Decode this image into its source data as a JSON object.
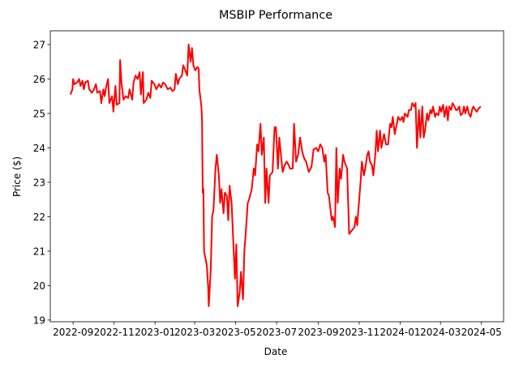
{
  "chart_data": {
    "type": "line",
    "title": "MSBIP Performance",
    "x_label": "Date",
    "y_label": "Price ($)",
    "color": "#ff0000",
    "xlim": [
      19202,
      19877
    ],
    "ylim": [
      18.95,
      27.4
    ],
    "xticks": [
      {
        "value": 19236,
        "label": "2022-09"
      },
      {
        "value": 19297,
        "label": "2022-11"
      },
      {
        "value": 19358,
        "label": "2023-01"
      },
      {
        "value": 19417,
        "label": "2023-03"
      },
      {
        "value": 19478,
        "label": "2023-05"
      },
      {
        "value": 19539,
        "label": "2023-07"
      },
      {
        "value": 19601,
        "label": "2023-09"
      },
      {
        "value": 19662,
        "label": "2023-11"
      },
      {
        "value": 19723,
        "label": "2024-01"
      },
      {
        "value": 19783,
        "label": "2024-03"
      },
      {
        "value": 19844,
        "label": "2024-05"
      }
    ],
    "yticks": [
      19,
      20,
      21,
      22,
      23,
      24,
      25,
      26,
      27
    ],
    "x": [
      19232,
      19235,
      19236,
      19238,
      19242,
      19245,
      19247,
      19250,
      19252,
      19254,
      19258,
      19260,
      19264,
      19267,
      19270,
      19272,
      19276,
      19278,
      19281,
      19283,
      19285,
      19288,
      19290,
      19294,
      19296,
      19299,
      19301,
      19305,
      19306,
      19308,
      19311,
      19314,
      19318,
      19320,
      19324,
      19326,
      19329,
      19332,
      19335,
      19337,
      19340,
      19341,
      19345,
      19348,
      19351,
      19353,
      19357,
      19360,
      19364,
      19367,
      19370,
      19373,
      19377,
      19381,
      19384,
      19387,
      19389,
      19392,
      19394,
      19398,
      19400,
      19402,
      19406,
      19408,
      19411,
      19413,
      19415,
      19418,
      19421,
      19423,
      19424,
      19427,
      19428,
      19429,
      19430,
      19431,
      19435,
      19437,
      19438,
      19441,
      19443,
      19445,
      19448,
      19450,
      19453,
      19455,
      19457,
      19460,
      19462,
      19465,
      19467,
      19469,
      19472,
      19474,
      19477,
      19479,
      19481,
      19484,
      19486,
      19489,
      19491,
      19493,
      19496,
      19498,
      19502,
      19505,
      19507,
      19510,
      19512,
      19515,
      19517,
      19520,
      19522,
      19524,
      19527,
      19529,
      19533,
      19536,
      19538,
      19541,
      19543,
      19545,
      19548,
      19551,
      19554,
      19557,
      19559,
      19563,
      19565,
      19568,
      19571,
      19574,
      19577,
      19580,
      19583,
      19587,
      19591,
      19594,
      19598,
      19601,
      19604,
      19607,
      19610,
      19612,
      19615,
      19617,
      19621,
      19623,
      19626,
      19628,
      19630,
      19633,
      19635,
      19638,
      19640,
      19644,
      19647,
      19651,
      19655,
      19657,
      19659,
      19662,
      19664,
      19666,
      19669,
      19671,
      19674,
      19676,
      19678,
      19681,
      19683,
      19686,
      19688,
      19690,
      19693,
      19695,
      19699,
      19702,
      19705,
      19708,
      19710,
      19712,
      19715,
      19717,
      19720,
      19723,
      19726,
      19728,
      19730,
      19734,
      19736,
      19739,
      19741,
      19744,
      19746,
      19748,
      19751,
      19753,
      19756,
      19758,
      19760,
      19763,
      19765,
      19768,
      19770,
      19772,
      19775,
      19777,
      19780,
      19782,
      19784,
      19787,
      19789,
      19792,
      19794,
      19796,
      19799,
      19801,
      19804,
      19806,
      19808,
      19811,
      19813,
      19816,
      19818,
      19820,
      19823,
      19825,
      19828,
      19830,
      19832,
      19835,
      19837,
      19840,
      19843
    ],
    "values": [
      25.55,
      25.7,
      26.0,
      25.85,
      25.9,
      26.0,
      25.8,
      25.95,
      25.7,
      25.9,
      25.95,
      25.7,
      25.6,
      25.7,
      25.85,
      25.6,
      25.65,
      25.3,
      25.7,
      25.5,
      25.75,
      26.0,
      25.3,
      25.5,
      25.05,
      25.8,
      25.25,
      25.3,
      26.55,
      25.9,
      25.4,
      25.5,
      25.45,
      25.7,
      25.4,
      25.9,
      26.1,
      26.0,
      26.2,
      25.55,
      26.2,
      25.3,
      25.4,
      25.6,
      25.45,
      25.95,
      25.85,
      25.7,
      25.85,
      25.75,
      25.9,
      25.85,
      25.7,
      25.75,
      25.65,
      25.7,
      26.15,
      25.85,
      26.0,
      26.1,
      26.4,
      26.3,
      26.1,
      27.0,
      26.5,
      26.9,
      26.4,
      26.25,
      26.35,
      26.3,
      25.7,
      25.2,
      24.8,
      22.7,
      22.8,
      21.0,
      20.6,
      20.0,
      19.4,
      20.5,
      22.0,
      22.2,
      23.4,
      23.8,
      23.2,
      22.4,
      22.8,
      22.1,
      22.7,
      22.6,
      21.9,
      22.9,
      22.4,
      21.5,
      20.2,
      21.2,
      19.4,
      19.8,
      20.4,
      19.6,
      21.0,
      21.5,
      22.4,
      22.5,
      22.8,
      23.4,
      23.2,
      24.1,
      23.9,
      24.7,
      23.8,
      24.3,
      22.4,
      23.4,
      22.4,
      23.2,
      23.3,
      24.6,
      24.6,
      23.4,
      24.3,
      23.9,
      23.3,
      23.5,
      23.6,
      23.5,
      23.4,
      23.4,
      24.7,
      23.6,
      23.8,
      24.3,
      23.9,
      23.7,
      23.6,
      23.3,
      23.45,
      23.95,
      24.0,
      23.9,
      24.1,
      24.0,
      23.6,
      23.8,
      22.7,
      22.6,
      21.9,
      22.0,
      21.7,
      24.0,
      22.4,
      23.4,
      23.1,
      23.8,
      23.6,
      23.4,
      21.5,
      21.6,
      21.7,
      22.0,
      21.75,
      22.5,
      23.0,
      23.6,
      23.2,
      23.4,
      23.8,
      23.9,
      23.6,
      23.5,
      23.2,
      23.8,
      24.5,
      23.9,
      24.5,
      24.0,
      24.4,
      24.1,
      24.1,
      24.7,
      24.6,
      24.9,
      24.4,
      24.6,
      24.9,
      24.8,
      24.9,
      24.75,
      25.0,
      24.9,
      25.1,
      25.1,
      25.3,
      25.2,
      25.3,
      24.0,
      25.1,
      24.3,
      25.2,
      24.3,
      24.5,
      25.0,
      24.8,
      25.1,
      25.0,
      25.2,
      24.9,
      25.0,
      24.95,
      25.2,
      25.05,
      25.25,
      24.9,
      25.2,
      24.8,
      25.2,
      25.1,
      25.3,
      25.2,
      25.1,
      25.1,
      25.2,
      24.95,
      25.0,
      25.2,
      25.0,
      25.2,
      25.0,
      24.9,
      25.1,
      25.2,
      25.1,
      25.05,
      25.15,
      25.2
    ]
  }
}
